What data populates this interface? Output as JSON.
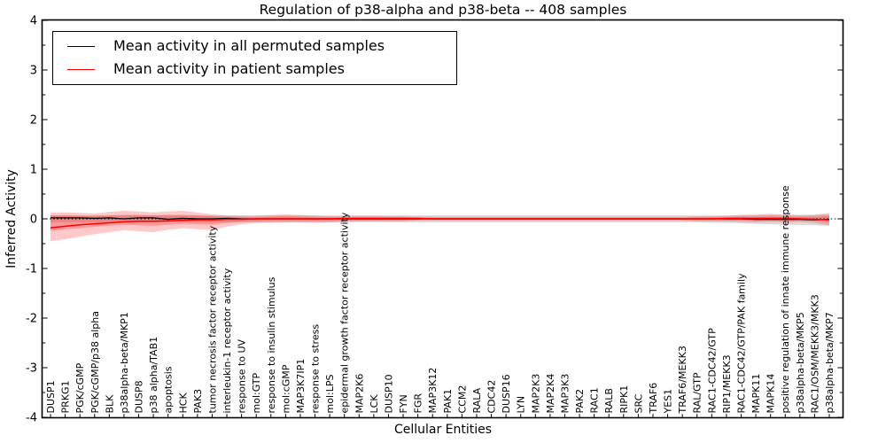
{
  "title": "Regulation of p38-alpha and p38-beta -- 408 samples",
  "axes": {
    "xlabel": "Cellular Entities",
    "ylabel": "Inferred Activity",
    "ytick_labels": [
      "4",
      "3",
      "2",
      "1",
      "0",
      "-1",
      "-2",
      "-3",
      "-4"
    ]
  },
  "legend": {
    "entries": [
      {
        "label": "Mean activity in all permuted samples",
        "color": "#000000"
      },
      {
        "label": "Mean activity in patient samples",
        "color": "#ff0000"
      }
    ]
  },
  "colors": {
    "background": "#ffffff",
    "frame": "#000000",
    "permuted_line": "#000000",
    "patient_line": "#ff0000",
    "permuted_band": "rgba(130,130,130,0.30)",
    "patient_band_outer": "rgba(255,40,40,0.25)",
    "patient_band_inner": "rgba(255,40,40,0.30)"
  },
  "chart_data": {
    "type": "line",
    "title": "Regulation of p38-alpha and p38-beta -- 408 samples",
    "xlabel": "Cellular Entities",
    "ylabel": "Inferred Activity",
    "ylim": [
      -4,
      4
    ],
    "yticks": [
      4,
      3,
      2,
      1,
      0,
      -1,
      -2,
      -3,
      -4
    ],
    "grid": false,
    "legend_position": "upper left",
    "zero_line": true,
    "categories": [
      "DUSP1",
      "PRKG1",
      "PGK/cGMP",
      "PGK/cGMP/p38 alpha",
      "BLK",
      "p38alpha-beta/MKP1",
      "DUSP8",
      "p38 alpha/TAB1",
      "apoptosis",
      "HCK",
      "PAK3",
      "tumor necrosis factor receptor activity",
      "interleukin-1 receptor activity",
      "response to UV",
      "mol:GTP",
      "response to insulin stimulus",
      "mol:cGMP",
      "MAP3K7IP1",
      "response to stress",
      "mol:LPS",
      "epidermal growth factor receptor activity",
      "MAP2K6",
      "LCK",
      "DUSP10",
      "FYN",
      "FGR",
      "MAP3K12",
      "PAK1",
      "CCM2",
      "RALA",
      "CDC42",
      "DUSP16",
      "LYN",
      "MAP2K3",
      "MAP2K4",
      "MAP3K3",
      "PAK2",
      "RAC1",
      "RALB",
      "RIPK1",
      "SRC",
      "TRAF6",
      "YES1",
      "TRAF6/MEKK3",
      "RAL/GTP",
      "RAC1-CDC42/GTP",
      "RIP1/MEKK3",
      "RAC1-CDC42/GTP/PAK family",
      "MAPK11",
      "MAPK14",
      "positive regulation of innate immune response",
      "p38alpha-beta/MKP5",
      "RAC1/OSM/MEKK3/MKK3",
      "p38alpha-beta/MKP7"
    ],
    "series": [
      {
        "name": "Mean activity in all permuted samples",
        "color": "#000000",
        "values": [
          0.02,
          0.02,
          0.02,
          0.01,
          0.02,
          0.0,
          0.02,
          0.02,
          -0.01,
          0.01,
          0.0,
          0.0,
          0.01,
          0.0,
          0.0,
          0.0,
          0.0,
          0.0,
          0.0,
          0.0,
          0.0,
          0.0,
          0.0,
          0.0,
          0.0,
          0.0,
          0.0,
          0.0,
          0.0,
          0.0,
          0.0,
          0.0,
          0.0,
          0.0,
          0.0,
          0.0,
          0.0,
          0.0,
          0.0,
          0.0,
          0.0,
          0.0,
          0.0,
          0.0,
          0.0,
          0.0,
          0.0,
          0.0,
          -0.01,
          -0.01,
          -0.01,
          -0.01,
          -0.02,
          -0.01
        ]
      },
      {
        "name": "Mean activity in patient samples",
        "color": "#ff0000",
        "values": [
          -0.18,
          -0.15,
          -0.12,
          -0.1,
          -0.08,
          -0.06,
          -0.05,
          -0.05,
          -0.04,
          -0.03,
          -0.02,
          -0.02,
          -0.01,
          -0.01,
          0.0,
          0.0,
          0.0,
          0.0,
          0.0,
          0.0,
          0.01,
          0.01,
          0.01,
          0.01,
          0.01,
          0.01,
          0.0,
          0.0,
          0.0,
          0.0,
          0.0,
          0.0,
          0.0,
          0.0,
          0.0,
          0.0,
          0.0,
          0.0,
          0.0,
          0.0,
          0.0,
          0.0,
          0.0,
          0.0,
          0.0,
          0.0,
          0.01,
          0.01,
          0.01,
          0.01,
          0.01,
          0.0,
          -0.01,
          -0.02
        ]
      }
    ],
    "bands": [
      {
        "name": "permuted-range",
        "fill": "rgba(130,130,130,0.30)",
        "upper": [
          0.07,
          0.07,
          0.07,
          0.07,
          0.07,
          0.07,
          0.07,
          0.07,
          0.07,
          0.07,
          0.07,
          0.07,
          0.07,
          0.07,
          0.07,
          0.07,
          0.07,
          0.07,
          0.07,
          0.07,
          0.07,
          0.07,
          0.07,
          0.07,
          0.07,
          0.07,
          0.07,
          0.07,
          0.07,
          0.07,
          0.07,
          0.07,
          0.07,
          0.07,
          0.07,
          0.07,
          0.07,
          0.07,
          0.07,
          0.07,
          0.07,
          0.07,
          0.07,
          0.07,
          0.07,
          0.07,
          0.07,
          0.07,
          0.08,
          0.08,
          0.08,
          0.08,
          0.08,
          0.09
        ],
        "lower": [
          -0.07,
          -0.07,
          -0.07,
          -0.07,
          -0.07,
          -0.07,
          -0.07,
          -0.07,
          -0.07,
          -0.07,
          -0.07,
          -0.07,
          -0.07,
          -0.07,
          -0.07,
          -0.07,
          -0.07,
          -0.07,
          -0.07,
          -0.07,
          -0.07,
          -0.07,
          -0.07,
          -0.07,
          -0.07,
          -0.07,
          -0.07,
          -0.07,
          -0.07,
          -0.07,
          -0.07,
          -0.07,
          -0.07,
          -0.07,
          -0.07,
          -0.07,
          -0.07,
          -0.07,
          -0.07,
          -0.07,
          -0.07,
          -0.07,
          -0.07,
          -0.07,
          -0.07,
          -0.08,
          -0.08,
          -0.09,
          -0.1,
          -0.11,
          -0.12,
          -0.12,
          -0.13,
          -0.14
        ]
      },
      {
        "name": "patient-range-outer",
        "fill": "rgba(255,40,40,0.25)",
        "upper": [
          0.13,
          0.13,
          0.12,
          0.11,
          0.14,
          0.16,
          0.15,
          0.13,
          0.15,
          0.16,
          0.13,
          0.09,
          0.07,
          0.06,
          0.06,
          0.08,
          0.09,
          0.08,
          0.06,
          0.05,
          0.05,
          0.06,
          0.06,
          0.05,
          0.05,
          0.04,
          0.04,
          0.04,
          0.04,
          0.04,
          0.04,
          0.04,
          0.04,
          0.04,
          0.04,
          0.04,
          0.04,
          0.04,
          0.04,
          0.04,
          0.04,
          0.04,
          0.04,
          0.04,
          0.05,
          0.05,
          0.06,
          0.08,
          0.08,
          0.1,
          0.08,
          0.07,
          0.08,
          0.12
        ],
        "lower": [
          -0.45,
          -0.41,
          -0.36,
          -0.31,
          -0.27,
          -0.23,
          -0.25,
          -0.27,
          -0.22,
          -0.19,
          -0.21,
          -0.22,
          -0.16,
          -0.11,
          -0.09,
          -0.08,
          -0.07,
          -0.07,
          -0.08,
          -0.07,
          -0.06,
          -0.05,
          -0.05,
          -0.05,
          -0.05,
          -0.04,
          -0.04,
          -0.04,
          -0.04,
          -0.04,
          -0.04,
          -0.04,
          -0.04,
          -0.04,
          -0.04,
          -0.04,
          -0.04,
          -0.04,
          -0.04,
          -0.04,
          -0.04,
          -0.04,
          -0.04,
          -0.04,
          -0.05,
          -0.05,
          -0.05,
          -0.06,
          -0.07,
          -0.06,
          -0.07,
          -0.06,
          -0.08,
          -0.13
        ]
      },
      {
        "name": "patient-range-inner",
        "fill": "rgba(255,40,40,0.30)",
        "upper": [
          0.07,
          0.07,
          0.06,
          0.06,
          0.07,
          0.08,
          0.08,
          0.07,
          0.08,
          0.08,
          0.07,
          0.05,
          0.04,
          0.03,
          0.03,
          0.04,
          0.05,
          0.04,
          0.03,
          0.03,
          0.03,
          0.03,
          0.03,
          0.03,
          0.03,
          0.02,
          0.02,
          0.02,
          0.02,
          0.02,
          0.02,
          0.02,
          0.02,
          0.02,
          0.02,
          0.02,
          0.02,
          0.02,
          0.02,
          0.02,
          0.02,
          0.02,
          0.02,
          0.02,
          0.03,
          0.03,
          0.03,
          0.04,
          0.04,
          0.05,
          0.04,
          0.04,
          0.04,
          0.06
        ],
        "lower": [
          -0.24,
          -0.21,
          -0.19,
          -0.16,
          -0.14,
          -0.12,
          -0.13,
          -0.14,
          -0.12,
          -0.1,
          -0.11,
          -0.12,
          -0.08,
          -0.06,
          -0.05,
          -0.04,
          -0.04,
          -0.04,
          -0.04,
          -0.04,
          -0.03,
          -0.03,
          -0.03,
          -0.03,
          -0.03,
          -0.02,
          -0.02,
          -0.02,
          -0.02,
          -0.02,
          -0.02,
          -0.02,
          -0.02,
          -0.02,
          -0.02,
          -0.02,
          -0.02,
          -0.02,
          -0.02,
          -0.02,
          -0.02,
          -0.02,
          -0.02,
          -0.02,
          -0.03,
          -0.03,
          -0.03,
          -0.03,
          -0.04,
          -0.03,
          -0.04,
          -0.03,
          -0.04,
          -0.07
        ]
      }
    ]
  }
}
